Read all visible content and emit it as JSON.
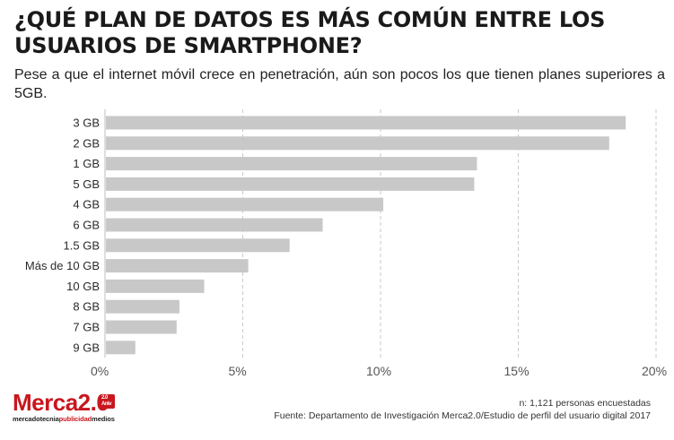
{
  "title": "¿QUÉ PLAN DE DATOS ES MÁS COMÚN ENTRE LOS USUARIOS DE SMARTPHONE?",
  "subtitle": "Pese a que el internet móvil crece en penetración, aún son pocos los que tienen planes superiores a 5GB.",
  "footer": {
    "n": "n: 1,121 personas encuestadas",
    "source": "Fuente: Departamento de Investigación Merca2.0/Estudio de perfil del usuario digital 2017"
  },
  "logo": {
    "name": "Merca2.0",
    "badge": "2.0 Aniv",
    "tag_a": "mercadotecnia",
    "tag_b": "publicidad",
    "tag_c": "medios"
  },
  "colors": {
    "bar": "#c8c8c8",
    "grid": "#c9c9c9",
    "brand": "#c8171e"
  },
  "chart_data": {
    "type": "bar",
    "orientation": "horizontal",
    "categories": [
      "3 GB",
      "2 GB",
      "1 GB",
      "5 GB",
      "4 GB",
      "6 GB",
      "1.5 GB",
      "Más de 10 GB",
      "10 GB",
      "8 GB",
      "7 GB",
      "9 GB"
    ],
    "values": [
      18.9,
      18.3,
      13.5,
      13.4,
      10.1,
      7.9,
      6.7,
      5.2,
      3.6,
      2.7,
      2.6,
      1.1
    ],
    "xlim": [
      0,
      20
    ],
    "xticks": [
      0,
      5,
      10,
      15,
      20
    ],
    "tick_labels": [
      "0%",
      "5%",
      "10%",
      "15%",
      "20%"
    ],
    "grid": true
  }
}
